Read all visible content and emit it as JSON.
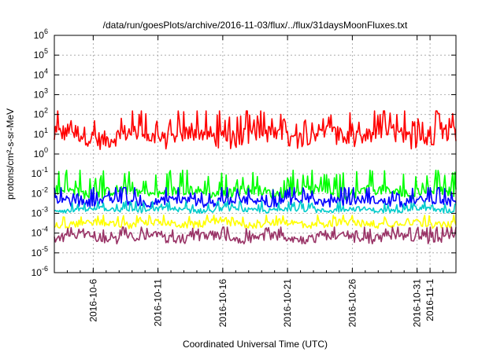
{
  "chart_data": {
    "type": "line",
    "title": "/data/run/goesPlots/archive/2016-11-03/flux/../flux/31daysMoonFluxes.txt",
    "xlabel": "Coordinated Universal Time (UTC)",
    "ylabel": "protons/cm²-s-sr-MeV",
    "yscale": "log",
    "ylim": [
      1e-06,
      1000000.0
    ],
    "y_ticks": [
      {
        "base": "10",
        "exp": "-6"
      },
      {
        "base": "10",
        "exp": "-5"
      },
      {
        "base": "10",
        "exp": "-4"
      },
      {
        "base": "10",
        "exp": "-3"
      },
      {
        "base": "10",
        "exp": "-2"
      },
      {
        "base": "10",
        "exp": "-1"
      },
      {
        "base": "10",
        "exp": "0"
      },
      {
        "base": "10",
        "exp": "1"
      },
      {
        "base": "10",
        "exp": "2"
      },
      {
        "base": "10",
        "exp": "3"
      },
      {
        "base": "10",
        "exp": "4"
      },
      {
        "base": "10",
        "exp": "5"
      },
      {
        "base": "10",
        "exp": "6"
      }
    ],
    "xlim": [
      "2016-10-03T00:00",
      "2016-11-03T00:00"
    ],
    "x_ticks": [
      "2016-10-6",
      "2016-10-11",
      "2016-10-16",
      "2016-10-21",
      "2016-10-26",
      "2016-10-31",
      "2016-11-1"
    ],
    "grid": true,
    "legend": "none",
    "series": [
      {
        "color": "#ff0000",
        "baseline": 8,
        "range": [
          0.3,
          150
        ]
      },
      {
        "color": "#00ff00",
        "baseline": 0.012,
        "range": [
          0.005,
          0.15
        ]
      },
      {
        "color": "#0000ff",
        "baseline": 0.004,
        "range": [
          0.0012,
          0.02
        ]
      },
      {
        "color": "#00cccc",
        "baseline": 0.0015,
        "range": [
          0.0008,
          0.004
        ]
      },
      {
        "color": "#ffff00",
        "baseline": 0.0003,
        "range": [
          8e-05,
          0.0008
        ]
      },
      {
        "color": "#993366",
        "baseline": 6e-05,
        "range": [
          1e-05,
          0.0002
        ]
      }
    ]
  }
}
